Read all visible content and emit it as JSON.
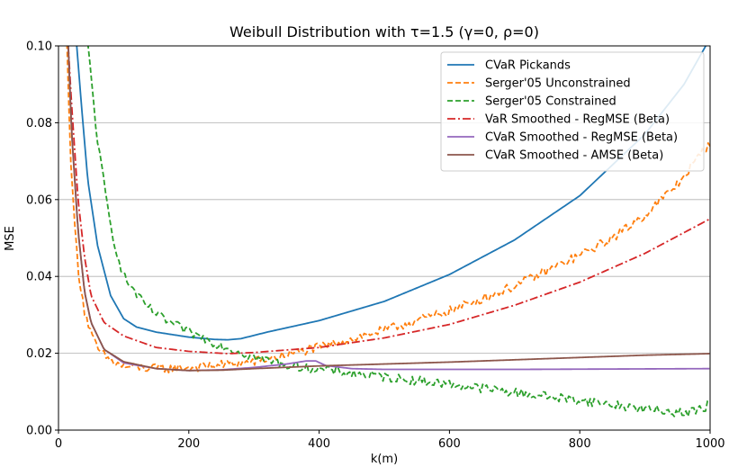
{
  "chart_data": {
    "type": "line",
    "title": "Weibull Distribution with τ=1.5 (γ=0, ρ=0)",
    "xlabel": "k(m)",
    "ylabel": "MSE",
    "xlim": [
      0,
      1000
    ],
    "ylim": [
      0,
      0.1
    ],
    "xticks": [
      "0",
      "200",
      "400",
      "600",
      "800",
      "1000"
    ],
    "xtick_values": [
      0,
      200,
      400,
      600,
      800,
      1000
    ],
    "yticks": [
      "0.00",
      "0.02",
      "0.04",
      "0.06",
      "0.08",
      "0.10"
    ],
    "ytick_values": [
      0,
      0.02,
      0.04,
      0.06,
      0.08,
      0.1
    ],
    "grid": "horizontal",
    "legend_position": "top-right",
    "series": [
      {
        "name": "CVaR Pickands",
        "color": "#1f77b4",
        "dash": "solid",
        "noise": 0,
        "points": [
          [
            28,
            0.1
          ],
          [
            35,
            0.085
          ],
          [
            45,
            0.065
          ],
          [
            60,
            0.048
          ],
          [
            80,
            0.035
          ],
          [
            100,
            0.029
          ],
          [
            120,
            0.0268
          ],
          [
            150,
            0.0255
          ],
          [
            200,
            0.0242
          ],
          [
            240,
            0.0236
          ],
          [
            260,
            0.0235
          ],
          [
            280,
            0.0238
          ],
          [
            320,
            0.0255
          ],
          [
            400,
            0.0285
          ],
          [
            500,
            0.0335
          ],
          [
            600,
            0.0405
          ],
          [
            700,
            0.0495
          ],
          [
            800,
            0.061
          ],
          [
            900,
            0.077
          ],
          [
            960,
            0.09
          ],
          [
            1000,
            0.102
          ]
        ]
      },
      {
        "name": "Serger'05 Unconstrained",
        "color": "#ff7f0e",
        "dash": "dashed",
        "noise": 0.0012,
        "points": [
          [
            13,
            0.1
          ],
          [
            20,
            0.065
          ],
          [
            30,
            0.042
          ],
          [
            40,
            0.031
          ],
          [
            50,
            0.025
          ],
          [
            60,
            0.021
          ],
          [
            80,
            0.018
          ],
          [
            100,
            0.0165
          ],
          [
            150,
            0.016
          ],
          [
            200,
            0.0162
          ],
          [
            300,
            0.0178
          ],
          [
            400,
            0.0215
          ],
          [
            500,
            0.026
          ],
          [
            600,
            0.031
          ],
          [
            700,
            0.0375
          ],
          [
            800,
            0.0455
          ],
          [
            850,
            0.05
          ],
          [
            900,
            0.056
          ],
          [
            950,
            0.064
          ],
          [
            1000,
            0.075
          ]
        ]
      },
      {
        "name": "Serger'05 Constrained",
        "color": "#2ca02c",
        "dash": "dashed",
        "noise": 0.0012,
        "points": [
          [
            45,
            0.1
          ],
          [
            50,
            0.092
          ],
          [
            60,
            0.075
          ],
          [
            70,
            0.064
          ],
          [
            80,
            0.053
          ],
          [
            90,
            0.046
          ],
          [
            100,
            0.04
          ],
          [
            130,
            0.033
          ],
          [
            160,
            0.029
          ],
          [
            200,
            0.0255
          ],
          [
            250,
            0.022
          ],
          [
            300,
            0.019
          ],
          [
            350,
            0.017
          ],
          [
            400,
            0.0158
          ],
          [
            450,
            0.0148
          ],
          [
            500,
            0.0138
          ],
          [
            600,
            0.012
          ],
          [
            700,
            0.0098
          ],
          [
            800,
            0.0078
          ],
          [
            900,
            0.0055
          ],
          [
            960,
            0.0045
          ],
          [
            990,
            0.0055
          ],
          [
            1000,
            0.0075
          ]
        ]
      },
      {
        "name": "VaR Smoothed - RegMSE (Beta)",
        "color": "#d62728",
        "dash": "dashdot",
        "noise": 0,
        "points": [
          [
            15,
            0.1
          ],
          [
            20,
            0.085
          ],
          [
            30,
            0.06
          ],
          [
            40,
            0.045
          ],
          [
            50,
            0.035
          ],
          [
            70,
            0.028
          ],
          [
            100,
            0.0245
          ],
          [
            150,
            0.0215
          ],
          [
            200,
            0.0205
          ],
          [
            260,
            0.0199
          ],
          [
            300,
            0.0202
          ],
          [
            400,
            0.0215
          ],
          [
            500,
            0.024
          ],
          [
            600,
            0.0275
          ],
          [
            700,
            0.0325
          ],
          [
            800,
            0.0385
          ],
          [
            900,
            0.046
          ],
          [
            1000,
            0.055
          ]
        ]
      },
      {
        "name": "CVaR Smoothed - RegMSE (Beta)",
        "color": "#9467bd",
        "dash": "solid",
        "noise": 0,
        "points": [
          [
            15,
            0.1
          ],
          [
            20,
            0.078
          ],
          [
            30,
            0.052
          ],
          [
            40,
            0.036
          ],
          [
            50,
            0.028
          ],
          [
            70,
            0.021
          ],
          [
            100,
            0.0175
          ],
          [
            150,
            0.016
          ],
          [
            200,
            0.0155
          ],
          [
            250,
            0.0157
          ],
          [
            300,
            0.0163
          ],
          [
            350,
            0.0172
          ],
          [
            380,
            0.018
          ],
          [
            395,
            0.018
          ],
          [
            410,
            0.0168
          ],
          [
            450,
            0.016
          ],
          [
            500,
            0.0158
          ],
          [
            700,
            0.0158
          ],
          [
            1000,
            0.016
          ]
        ]
      },
      {
        "name": "CVaR Smoothed - AMSE (Beta)",
        "color": "#8c564b",
        "dash": "solid",
        "noise": 0,
        "points": [
          [
            15,
            0.1
          ],
          [
            20,
            0.078
          ],
          [
            30,
            0.052
          ],
          [
            40,
            0.036
          ],
          [
            50,
            0.028
          ],
          [
            70,
            0.021
          ],
          [
            100,
            0.0178
          ],
          [
            150,
            0.016
          ],
          [
            200,
            0.0155
          ],
          [
            250,
            0.0156
          ],
          [
            300,
            0.016
          ],
          [
            400,
            0.0167
          ],
          [
            500,
            0.0172
          ],
          [
            600,
            0.0177
          ],
          [
            700,
            0.0183
          ],
          [
            800,
            0.0189
          ],
          [
            900,
            0.0195
          ],
          [
            1000,
            0.0199
          ]
        ]
      }
    ]
  }
}
